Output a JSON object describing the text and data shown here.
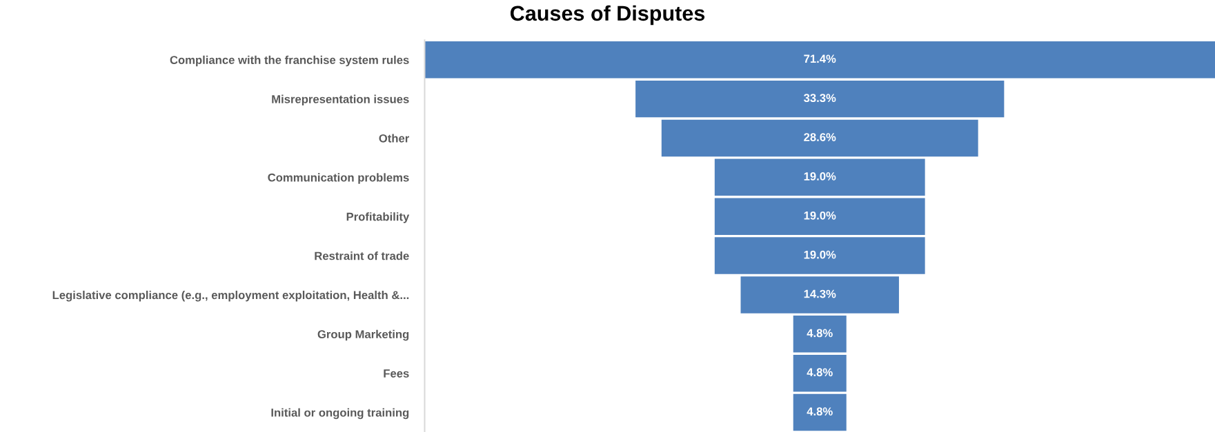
{
  "chart_data": {
    "type": "other",
    "title": "Causes of Disputes",
    "categories": [
      "Compliance with the franchise system rules",
      "Misrepresentation issues",
      "Other",
      "Communication problems",
      "Profitability",
      "Restraint of trade",
      "Legislative compliance (e.g., employment exploitation, Health &...",
      "Group Marketing",
      "Fees",
      "Initial or ongoing training"
    ],
    "values": [
      71.4,
      33.3,
      28.6,
      19.0,
      19.0,
      19.0,
      14.3,
      4.8,
      4.8,
      4.8
    ],
    "value_labels": [
      "71.4%",
      "33.3%",
      "28.6%",
      "19.0%",
      "19.0%",
      "19.0%",
      "14.3%",
      "4.8%",
      "4.8%",
      "4.8%"
    ],
    "color": "#4f81bd"
  }
}
